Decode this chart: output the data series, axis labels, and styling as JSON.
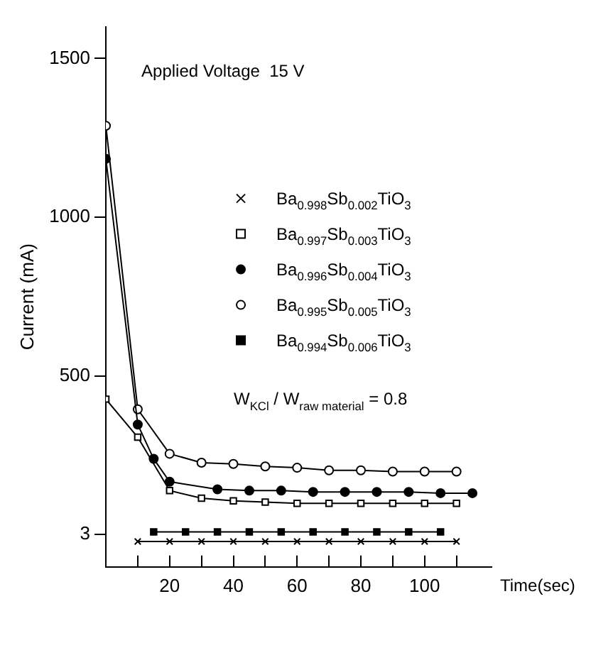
{
  "chart_data": {
    "type": "line",
    "xlabel": "Time(sec)",
    "ylabel": "Current (mA)",
    "xlim": [
      0,
      121
    ],
    "ylim": [
      -100,
      1600
    ],
    "xticks": [
      {
        "value": 10,
        "label": null
      },
      20,
      {
        "value": 30,
        "label": null
      },
      40,
      {
        "value": 50,
        "label": null
      },
      60,
      {
        "value": 70,
        "label": null
      },
      80,
      {
        "value": 90,
        "label": null
      },
      100,
      {
        "value": 110,
        "label": null
      }
    ],
    "yticks": [
      3,
      500,
      1000,
      1500
    ],
    "grid": false,
    "legend": "right",
    "annotations": [
      "Applied Voltage  15 V",
      "W$_{KCl}$ / W$_{raw material}$ = 0.8"
    ],
    "series": [
      {
        "name": "Ba$_{0.998}$Sb$_{0.002}$TiO$_{3}$",
        "color": "#000000",
        "marker": "cross",
        "x": [
          10,
          20,
          30,
          40,
          50,
          60,
          70,
          80,
          90,
          100,
          110
        ],
        "values": [
          -20,
          -20,
          -20,
          -20,
          -20,
          -20,
          -20,
          -20,
          -20,
          -20,
          -20
        ]
      },
      {
        "name": "Ba$_{0.997}$Sb$_{0.003}$TiO$_{3}$",
        "color": "#000000",
        "marker": "square",
        "x": [
          0,
          10,
          20,
          30,
          40,
          50,
          60,
          70,
          80,
          90,
          100,
          110
        ],
        "values": [
          428,
          308,
          140,
          116,
          108,
          104,
          100,
          100,
          100,
          100,
          100,
          100
        ]
      },
      {
        "name": "Ba$_{0.996}$Sb$_{0.004}$TiO$_{3}$",
        "color": "#000000",
        "marker": "circle",
        "x": [
          0,
          10,
          15,
          20,
          35,
          45,
          55,
          65,
          75,
          85,
          95,
          105,
          115
        ],
        "values": [
          1184,
          348,
          240,
          168,
          144,
          140,
          140,
          136,
          136,
          136,
          136,
          132,
          132
        ]
      },
      {
        "name": "Ba$_{0.995}$Sb$_{0.005}$TiO$_{3}$",
        "color": "#000000",
        "marker": "circle",
        "x": [
          0,
          10,
          20,
          30,
          40,
          50,
          60,
          70,
          80,
          90,
          100,
          110
        ],
        "values": [
          1288,
          396,
          256,
          228,
          224,
          216,
          212,
          204,
          204,
          200,
          200,
          200
        ]
      },
      {
        "name": "Ba$_{0.994}$Sb$_{0.006}$TiO$_{3}$",
        "color": "#000000",
        "marker": "square",
        "x": [
          15,
          25,
          35,
          45,
          55,
          65,
          75,
          85,
          95,
          105
        ],
        "values": [
          10,
          10,
          10,
          10,
          10,
          10,
          10,
          10,
          10,
          10
        ]
      }
    ]
  }
}
